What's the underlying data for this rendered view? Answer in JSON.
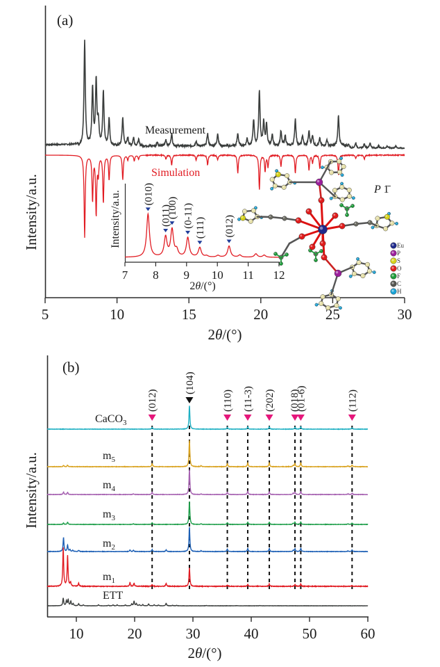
{
  "chart_data": [
    {
      "panel": "(a)",
      "type": "line",
      "xlabel": "2θ/(°)",
      "ylabel": "Intensity/a.u.",
      "xlim": [
        5,
        30
      ],
      "xticks": [
        5,
        10,
        15,
        20,
        25,
        30
      ],
      "grid": false,
      "series": [
        {
          "name": "Measurement",
          "color": "#3a3d3c",
          "direction": "up",
          "peaks": [
            {
              "x": 7.75,
              "h": 1.0
            },
            {
              "x": 8.3,
              "h": 0.55
            },
            {
              "x": 8.55,
              "h": 0.62
            },
            {
              "x": 8.7,
              "h": 0.22
            },
            {
              "x": 9.05,
              "h": 0.52
            },
            {
              "x": 9.45,
              "h": 0.26
            },
            {
              "x": 10.4,
              "h": 0.27
            },
            {
              "x": 10.75,
              "h": 0.08
            },
            {
              "x": 11.15,
              "h": 0.08
            },
            {
              "x": 11.5,
              "h": 0.06
            },
            {
              "x": 12.8,
              "h": 0.04
            },
            {
              "x": 13.4,
              "h": 0.06
            },
            {
              "x": 13.8,
              "h": 0.12
            },
            {
              "x": 15.5,
              "h": 0.05
            },
            {
              "x": 16.3,
              "h": 0.12
            },
            {
              "x": 17.0,
              "h": 0.12
            },
            {
              "x": 18.4,
              "h": 0.12
            },
            {
              "x": 19.05,
              "h": 0.07
            },
            {
              "x": 19.5,
              "h": 0.25
            },
            {
              "x": 19.9,
              "h": 0.53
            },
            {
              "x": 20.2,
              "h": 0.23
            },
            {
              "x": 20.4,
              "h": 0.2
            },
            {
              "x": 20.8,
              "h": 0.1
            },
            {
              "x": 21.4,
              "h": 0.14
            },
            {
              "x": 21.7,
              "h": 0.1
            },
            {
              "x": 22.4,
              "h": 0.26
            },
            {
              "x": 22.9,
              "h": 0.1
            },
            {
              "x": 23.35,
              "h": 0.14
            },
            {
              "x": 23.6,
              "h": 0.1
            },
            {
              "x": 24.1,
              "h": 0.07
            },
            {
              "x": 24.6,
              "h": 0.06
            },
            {
              "x": 25.4,
              "h": 0.29
            },
            {
              "x": 26.1,
              "h": 0.04
            },
            {
              "x": 26.6,
              "h": 0.05
            },
            {
              "x": 27.2,
              "h": 0.04
            },
            {
              "x": 27.6,
              "h": 0.05
            },
            {
              "x": 28.2,
              "h": 0.02
            },
            {
              "x": 28.8,
              "h": 0.02
            },
            {
              "x": 29.4,
              "h": 0.02
            }
          ]
        },
        {
          "name": "Simulation",
          "color": "#e11b22",
          "direction": "down",
          "peaks": [
            {
              "x": 7.75,
              "h": 1.0
            },
            {
              "x": 8.3,
              "h": 0.55
            },
            {
              "x": 8.55,
              "h": 0.72
            },
            {
              "x": 8.7,
              "h": 0.22
            },
            {
              "x": 9.05,
              "h": 0.58
            },
            {
              "x": 9.45,
              "h": 0.3
            },
            {
              "x": 10.4,
              "h": 0.3
            },
            {
              "x": 10.75,
              "h": 0.06
            },
            {
              "x": 11.2,
              "h": 0.07
            },
            {
              "x": 11.5,
              "h": 0.05
            },
            {
              "x": 13.4,
              "h": 0.05
            },
            {
              "x": 13.8,
              "h": 0.12
            },
            {
              "x": 15.5,
              "h": 0.06
            },
            {
              "x": 16.3,
              "h": 0.12
            },
            {
              "x": 17.0,
              "h": 0.06
            },
            {
              "x": 18.4,
              "h": 0.22
            },
            {
              "x": 19.9,
              "h": 0.42
            },
            {
              "x": 20.3,
              "h": 0.2
            },
            {
              "x": 20.5,
              "h": 0.14
            },
            {
              "x": 21.4,
              "h": 0.14
            },
            {
              "x": 22.4,
              "h": 0.22
            },
            {
              "x": 23.35,
              "h": 0.18
            },
            {
              "x": 23.6,
              "h": 0.1
            },
            {
              "x": 24.1,
              "h": 0.16
            },
            {
              "x": 25.4,
              "h": 0.24
            },
            {
              "x": 26.6,
              "h": 0.04
            },
            {
              "x": 27.2,
              "h": 0.05
            }
          ]
        }
      ],
      "annotations": [
        "Measurement",
        "Simulation",
        "P 1̄"
      ],
      "inset": {
        "type": "line",
        "xlabel": "2θ/(°)",
        "ylabel": "Intensity/a.u.",
        "xlim": [
          7,
          12
        ],
        "xticks": [
          7,
          8,
          9,
          10,
          11,
          12
        ],
        "color": "#e11b22",
        "marker_color": "#1f3c99",
        "reflections": [
          {
            "hkl": "(010)",
            "x": 7.75,
            "h": 1.0
          },
          {
            "hkl": "(011)",
            "x": 8.32,
            "h": 0.46
          },
          {
            "hkl": "(100)",
            "x": 8.53,
            "h": 0.63
          },
          {
            "hkl": "(0-11)",
            "x": 9.04,
            "h": 0.45
          },
          {
            "hkl": "(111)",
            "x": 9.43,
            "h": 0.22
          },
          {
            "hkl": "(012)",
            "x": 10.38,
            "h": 0.26
          }
        ],
        "minor_peaks": [
          {
            "x": 8.68,
            "h": 0.15
          },
          {
            "x": 9.65,
            "h": 0.03
          },
          {
            "x": 10.02,
            "h": 0.04
          },
          {
            "x": 10.73,
            "h": 0.05
          },
          {
            "x": 11.25,
            "h": 0.08
          },
          {
            "x": 11.52,
            "h": 0.05
          }
        ]
      },
      "structure_legend": [
        {
          "element": "Eu",
          "color": "#1f2a8c"
        },
        {
          "element": "P",
          "color": "#9b1f9b"
        },
        {
          "element": "S",
          "color": "#d6d21a"
        },
        {
          "element": "O",
          "color": "#e01c1c"
        },
        {
          "element": "F",
          "color": "#1e9c3a"
        },
        {
          "element": "C",
          "color": "#555550"
        },
        {
          "element": "H",
          "color": "#1aa3d6"
        }
      ],
      "space_group": "P 1̄"
    },
    {
      "panel": "(b)",
      "type": "line",
      "xlabel": "2θ/(°)",
      "ylabel": "Intensity/a.u.",
      "xlim": [
        5,
        60
      ],
      "xticks": [
        10,
        20,
        30,
        40,
        50,
        60
      ],
      "grid": false,
      "reference_lines": [
        {
          "hkl": "(012)",
          "x": 23.0,
          "marker_color": "#e5177b"
        },
        {
          "hkl": "(104)",
          "x": 29.4,
          "marker_color": "#111111"
        },
        {
          "hkl": "(110)",
          "x": 35.9,
          "marker_color": "#e5177b"
        },
        {
          "hkl": "(11-3)",
          "x": 39.4,
          "marker_color": "#e5177b"
        },
        {
          "hkl": "(202)",
          "x": 43.1,
          "marker_color": "#e5177b"
        },
        {
          "hkl": "(018)",
          "x": 47.5,
          "marker_color": "#e5177b"
        },
        {
          "hkl": "(01-6)",
          "x": 48.5,
          "marker_color": "#e5177b"
        },
        {
          "hkl": "(112)",
          "x": 57.3,
          "marker_color": "#e5177b"
        }
      ],
      "series": [
        {
          "name": "CaCO3",
          "label_main": "CaCO",
          "label_sub": "3",
          "color": "#1eb0c3",
          "peaks": [
            {
              "x": 23.0,
              "h": 0.08
            },
            {
              "x": 29.4,
              "h": 1.0
            },
            {
              "x": 35.9,
              "h": 0.08
            },
            {
              "x": 39.4,
              "h": 0.1
            },
            {
              "x": 43.1,
              "h": 0.1
            },
            {
              "x": 47.5,
              "h": 0.08
            },
            {
              "x": 48.5,
              "h": 0.1
            },
            {
              "x": 57.3,
              "h": 0.06
            }
          ]
        },
        {
          "name": "m5",
          "label_main": "m",
          "label_sub": "5",
          "color": "#d9a21e",
          "peaks": [
            {
              "x": 7.8,
              "h": 0.05
            },
            {
              "x": 8.5,
              "h": 0.06
            },
            {
              "x": 23.0,
              "h": 0.12
            },
            {
              "x": 29.4,
              "h": 1.0
            },
            {
              "x": 31.4,
              "h": 0.04
            },
            {
              "x": 35.9,
              "h": 0.12
            },
            {
              "x": 39.4,
              "h": 0.14
            },
            {
              "x": 43.1,
              "h": 0.14
            },
            {
              "x": 47.2,
              "h": 0.05
            },
            {
              "x": 47.5,
              "h": 0.12
            },
            {
              "x": 48.5,
              "h": 0.15
            },
            {
              "x": 56.6,
              "h": 0.03
            },
            {
              "x": 57.3,
              "h": 0.06
            }
          ]
        },
        {
          "name": "m4",
          "label_main": "m",
          "label_sub": "4",
          "color": "#a560b0",
          "peaks": [
            {
              "x": 7.8,
              "h": 0.1
            },
            {
              "x": 8.5,
              "h": 0.09
            },
            {
              "x": 19.8,
              "h": 0.03
            },
            {
              "x": 23.0,
              "h": 0.09
            },
            {
              "x": 29.4,
              "h": 1.0
            },
            {
              "x": 31.4,
              "h": 0.03
            },
            {
              "x": 35.9,
              "h": 0.09
            },
            {
              "x": 39.4,
              "h": 0.13
            },
            {
              "x": 43.1,
              "h": 0.1
            },
            {
              "x": 47.2,
              "h": 0.05
            },
            {
              "x": 47.5,
              "h": 0.1
            },
            {
              "x": 48.5,
              "h": 0.12
            },
            {
              "x": 56.6,
              "h": 0.03
            },
            {
              "x": 57.3,
              "h": 0.05
            }
          ]
        },
        {
          "name": "m3",
          "label_main": "m",
          "label_sub": "3",
          "color": "#1e9e4a",
          "peaks": [
            {
              "x": 7.8,
              "h": 0.06
            },
            {
              "x": 8.5,
              "h": 0.1
            },
            {
              "x": 19.8,
              "h": 0.03
            },
            {
              "x": 23.0,
              "h": 0.08
            },
            {
              "x": 29.4,
              "h": 1.0
            },
            {
              "x": 31.4,
              "h": 0.03
            },
            {
              "x": 35.9,
              "h": 0.08
            },
            {
              "x": 39.4,
              "h": 0.1
            },
            {
              "x": 43.1,
              "h": 0.1
            },
            {
              "x": 47.2,
              "h": 0.05
            },
            {
              "x": 47.5,
              "h": 0.1
            },
            {
              "x": 48.5,
              "h": 0.11
            },
            {
              "x": 56.6,
              "h": 0.03
            },
            {
              "x": 57.3,
              "h": 0.05
            }
          ]
        },
        {
          "name": "m2",
          "label_main": "m",
          "label_sub": "2",
          "color": "#1c5fb5",
          "peaks": [
            {
              "x": 7.8,
              "h": 0.55
            },
            {
              "x": 8.5,
              "h": 0.25
            },
            {
              "x": 8.9,
              "h": 0.08
            },
            {
              "x": 9.4,
              "h": 0.05
            },
            {
              "x": 10.4,
              "h": 0.05
            },
            {
              "x": 19.2,
              "h": 0.06
            },
            {
              "x": 19.8,
              "h": 0.05
            },
            {
              "x": 23.0,
              "h": 0.08
            },
            {
              "x": 25.4,
              "h": 0.07
            },
            {
              "x": 29.4,
              "h": 0.95
            },
            {
              "x": 31.4,
              "h": 0.03
            },
            {
              "x": 35.9,
              "h": 0.1
            },
            {
              "x": 39.4,
              "h": 0.12
            },
            {
              "x": 43.1,
              "h": 0.12
            },
            {
              "x": 47.2,
              "h": 0.05
            },
            {
              "x": 47.5,
              "h": 0.11
            },
            {
              "x": 48.5,
              "h": 0.13
            },
            {
              "x": 56.6,
              "h": 0.03
            },
            {
              "x": 57.3,
              "h": 0.06
            }
          ]
        },
        {
          "name": "m1",
          "label_main": "m",
          "label_sub": "1",
          "color": "#e11b22",
          "peaks": [
            {
              "x": 7.75,
              "h": 1.0
            },
            {
              "x": 8.5,
              "h": 0.8
            },
            {
              "x": 9.0,
              "h": 0.1
            },
            {
              "x": 10.4,
              "h": 0.08
            },
            {
              "x": 19.2,
              "h": 0.1
            },
            {
              "x": 19.9,
              "h": 0.08
            },
            {
              "x": 23.0,
              "h": 0.05
            },
            {
              "x": 25.4,
              "h": 0.08
            },
            {
              "x": 29.4,
              "h": 0.48
            },
            {
              "x": 35.9,
              "h": 0.03
            },
            {
              "x": 39.4,
              "h": 0.05
            },
            {
              "x": 43.1,
              "h": 0.06
            },
            {
              "x": 47.5,
              "h": 0.05
            },
            {
              "x": 48.5,
              "h": 0.06
            },
            {
              "x": 57.3,
              "h": 0.02
            }
          ]
        },
        {
          "name": "ETT",
          "label_main": "ETT",
          "label_sub": "",
          "color": "#3a3d3c",
          "peaks": [
            {
              "x": 7.75,
              "h": 0.5
            },
            {
              "x": 8.3,
              "h": 0.33
            },
            {
              "x": 8.6,
              "h": 0.4
            },
            {
              "x": 9.05,
              "h": 0.3
            },
            {
              "x": 9.45,
              "h": 0.14
            },
            {
              "x": 10.4,
              "h": 0.14
            },
            {
              "x": 11.2,
              "h": 0.06
            },
            {
              "x": 13.8,
              "h": 0.06
            },
            {
              "x": 15.5,
              "h": 0.04
            },
            {
              "x": 16.3,
              "h": 0.06
            },
            {
              "x": 17.0,
              "h": 0.06
            },
            {
              "x": 18.4,
              "h": 0.06
            },
            {
              "x": 19.5,
              "h": 0.12
            },
            {
              "x": 19.9,
              "h": 0.3
            },
            {
              "x": 20.3,
              "h": 0.14
            },
            {
              "x": 20.8,
              "h": 0.07
            },
            {
              "x": 21.4,
              "h": 0.08
            },
            {
              "x": 22.4,
              "h": 0.12
            },
            {
              "x": 23.35,
              "h": 0.07
            },
            {
              "x": 24.1,
              "h": 0.05
            },
            {
              "x": 25.4,
              "h": 0.16
            },
            {
              "x": 26.5,
              "h": 0.03
            },
            {
              "x": 27.2,
              "h": 0.03
            },
            {
              "x": 32.3,
              "h": 0.02
            },
            {
              "x": 37.5,
              "h": 0.015
            },
            {
              "x": 41.5,
              "h": 0.015
            }
          ]
        }
      ]
    }
  ]
}
